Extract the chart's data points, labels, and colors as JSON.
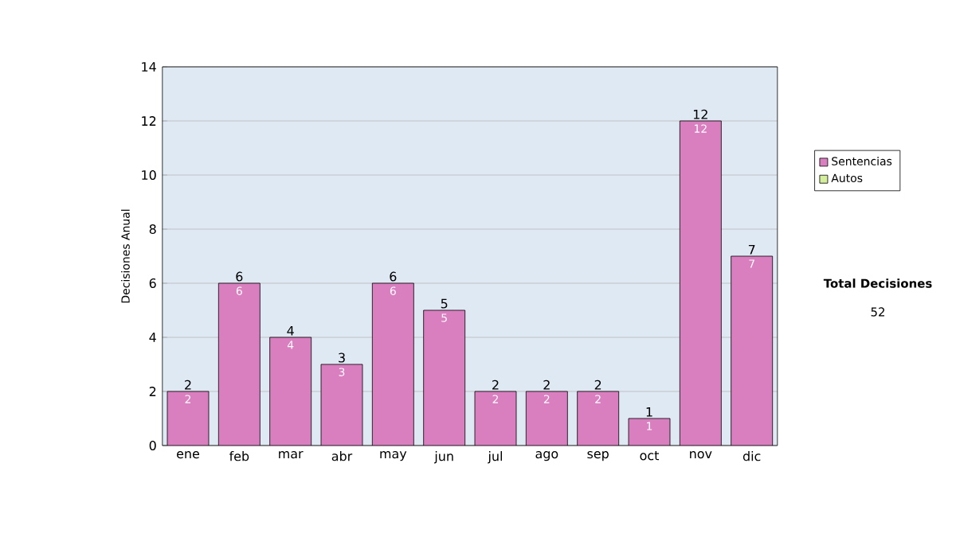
{
  "chart_data": {
    "type": "bar",
    "stacked": true,
    "categories": [
      "ene",
      "feb",
      "mar",
      "abr",
      "may",
      "jun",
      "jul",
      "ago",
      "sep",
      "oct",
      "nov",
      "dic"
    ],
    "series": [
      {
        "name": "Sentencias",
        "color": "#d97fc0",
        "values": [
          2,
          6,
          4,
          3,
          6,
          5,
          2,
          2,
          2,
          1,
          12,
          7
        ],
        "value_labels": [
          "2",
          "6",
          "4",
          "3",
          "6",
          "5",
          "2",
          "2",
          "2",
          "1",
          "12",
          "7"
        ]
      },
      {
        "name": "Autos",
        "color": "#d4ee9c",
        "values": [
          0,
          0,
          0,
          0,
          0,
          0,
          0,
          0,
          0,
          0,
          0,
          0
        ]
      }
    ],
    "ylabel": "Decisiones Anual",
    "ylim": [
      0,
      14
    ],
    "yticks": [
      0,
      2,
      4,
      6,
      8,
      10,
      12,
      14
    ],
    "grid": "y",
    "legend": "right",
    "totals": [
      "2",
      "6",
      "4",
      "3",
      "6",
      "5",
      "2",
      "2",
      "2",
      "1",
      "12",
      "7"
    ],
    "annotations": [
      "Total Decisiones",
      "52"
    ]
  }
}
